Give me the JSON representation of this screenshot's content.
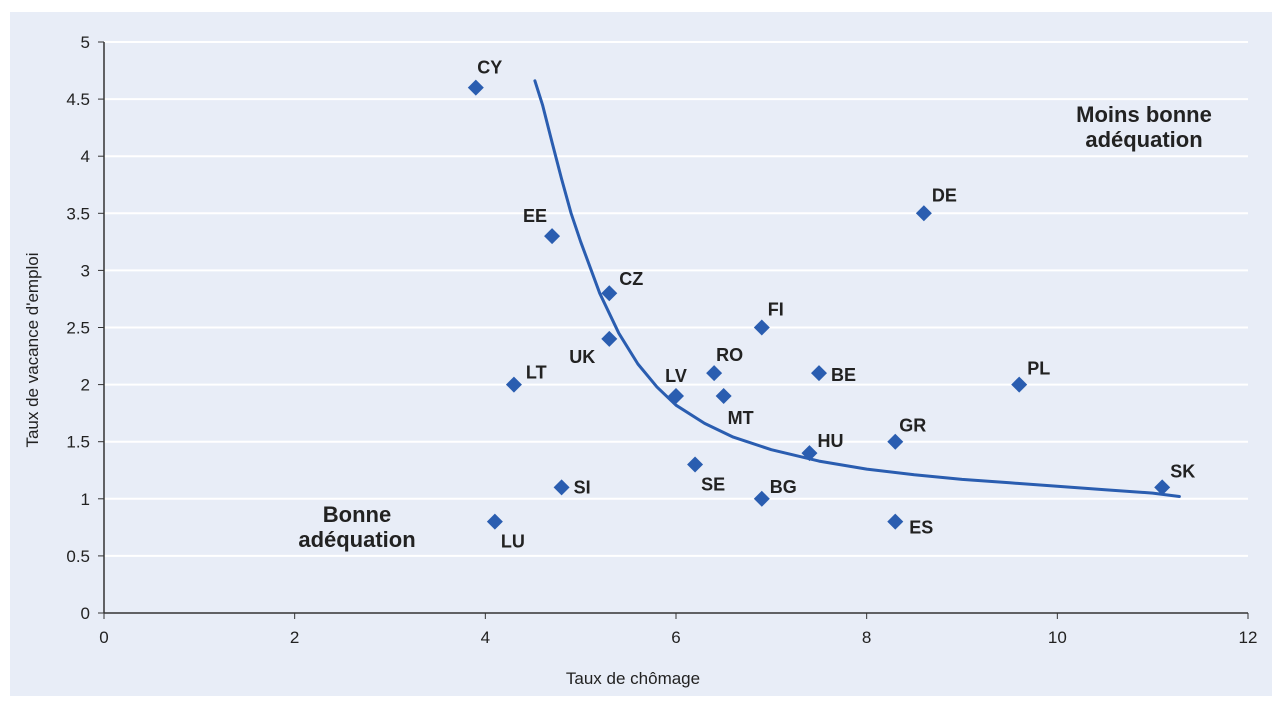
{
  "chart_data": {
    "type": "scatter",
    "title": "",
    "xlabel": "Taux de chômage",
    "ylabel": "Taux de vacance d'emploi",
    "xlim": [
      0,
      12
    ],
    "ylim": [
      0,
      5
    ],
    "x_ticks": [
      "0",
      "2",
      "4",
      "6",
      "8",
      "10",
      "12"
    ],
    "y_ticks": [
      "0",
      "0.5",
      "1",
      "1.5",
      "2",
      "2.5",
      "3",
      "3.5",
      "4",
      "4.5",
      "5"
    ],
    "grid": "horizontal",
    "points": [
      {
        "label": "CY",
        "x": 3.9,
        "y": 4.6
      },
      {
        "label": "EE",
        "x": 4.7,
        "y": 3.3
      },
      {
        "label": "CZ",
        "x": 5.3,
        "y": 2.8
      },
      {
        "label": "UK",
        "x": 5.3,
        "y": 2.4
      },
      {
        "label": "LT",
        "x": 4.3,
        "y": 2.0
      },
      {
        "label": "SI",
        "x": 4.8,
        "y": 1.1
      },
      {
        "label": "LU",
        "x": 4.1,
        "y": 0.8
      },
      {
        "label": "LV",
        "x": 6.0,
        "y": 1.9
      },
      {
        "label": "RO",
        "x": 6.4,
        "y": 2.1
      },
      {
        "label": "MT",
        "x": 6.5,
        "y": 1.9
      },
      {
        "label": "SE",
        "x": 6.2,
        "y": 1.3
      },
      {
        "label": "FI",
        "x": 6.9,
        "y": 2.5
      },
      {
        "label": "BG",
        "x": 6.9,
        "y": 1.0
      },
      {
        "label": "BE",
        "x": 7.5,
        "y": 2.1
      },
      {
        "label": "HU",
        "x": 7.4,
        "y": 1.4
      },
      {
        "label": "DE",
        "x": 8.6,
        "y": 3.5
      },
      {
        "label": "GR",
        "x": 8.3,
        "y": 1.5
      },
      {
        "label": "ES",
        "x": 8.3,
        "y": 0.8
      },
      {
        "label": "PL",
        "x": 9.6,
        "y": 2.0
      },
      {
        "label": "SK",
        "x": 11.1,
        "y": 1.1
      }
    ],
    "curve": {
      "x": [
        4.52,
        4.6,
        4.7,
        4.8,
        4.9,
        5.0,
        5.2,
        5.4,
        5.6,
        5.8,
        6.0,
        6.3,
        6.6,
        7.0,
        7.5,
        8.0,
        8.5,
        9.0,
        9.5,
        10.0,
        10.5,
        11.0,
        11.28
      ],
      "y": [
        4.66,
        4.45,
        4.12,
        3.8,
        3.5,
        3.25,
        2.8,
        2.45,
        2.18,
        1.98,
        1.82,
        1.66,
        1.54,
        1.43,
        1.33,
        1.26,
        1.21,
        1.17,
        1.14,
        1.11,
        1.08,
        1.05,
        1.02
      ],
      "color": "#2a5db0"
    },
    "annotations": [
      {
        "lines": [
          "Moins bonne",
          "adéquation"
        ],
        "position": "top-right"
      },
      {
        "lines": [
          "Bonne",
          "adéquation"
        ],
        "position": "bottom-left"
      }
    ],
    "colors": {
      "plot_background": "#e8edf7",
      "outer_background": "#e8edf7",
      "marker": "#2a5db0",
      "grid": "#ffffff"
    }
  }
}
